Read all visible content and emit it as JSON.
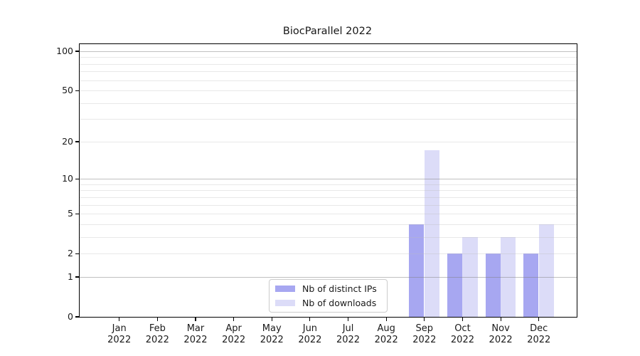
{
  "figure_title": "BiocParallel 2022",
  "chart_data": {
    "type": "bar",
    "title": "BiocParallel 2022",
    "xlabel": "",
    "ylabel": "",
    "year_label": "2022",
    "months": [
      "Jan",
      "Feb",
      "Mar",
      "Apr",
      "May",
      "Jun",
      "Jul",
      "Aug",
      "Sep",
      "Oct",
      "Nov",
      "Dec"
    ],
    "categories": [
      "Jan 2022",
      "Feb 2022",
      "Mar 2022",
      "Apr 2022",
      "May 2022",
      "Jun 2022",
      "Jul 2022",
      "Aug 2022",
      "Sep 2022",
      "Oct 2022",
      "Nov 2022",
      "Dec 2022"
    ],
    "series": [
      {
        "name": "Nb of distinct IPs",
        "color": "#a7a7f1",
        "values": [
          0,
          0,
          0,
          0,
          0,
          0,
          0,
          0,
          4,
          2,
          2,
          2
        ]
      },
      {
        "name": "Nb of downloads",
        "color": "#dcdcf8",
        "values": [
          0,
          0,
          0,
          0,
          0,
          0,
          0,
          0,
          17,
          3,
          3,
          4
        ]
      }
    ],
    "yscale": "log1p",
    "ylim": [
      0,
      113
    ],
    "yticks": [
      0,
      1,
      2,
      5,
      10,
      20,
      50,
      100
    ],
    "major_gridlines": [
      1,
      10,
      100
    ],
    "minor_gridlines": [
      2,
      3,
      4,
      5,
      6,
      7,
      8,
      9,
      20,
      30,
      40,
      50,
      60,
      70,
      80,
      90
    ],
    "grid": "on",
    "legend_position": "lower center inside plot"
  },
  "legend": {
    "items": [
      {
        "label": "Nb of distinct IPs",
        "color": "#a7a7f1"
      },
      {
        "label": "Nb of downloads",
        "color": "#dcdcf8"
      }
    ]
  }
}
